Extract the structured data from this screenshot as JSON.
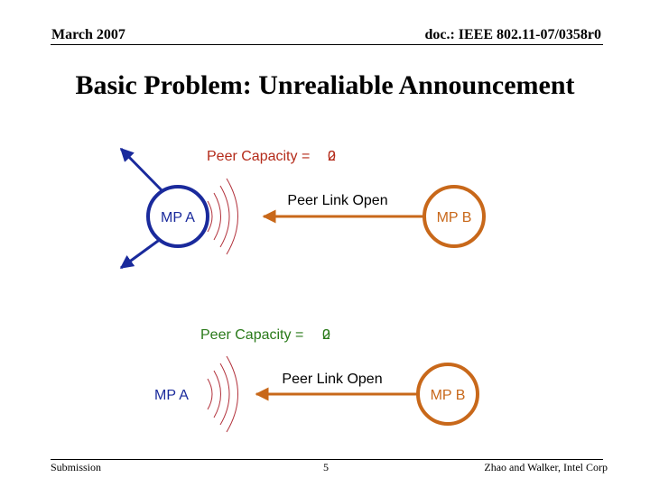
{
  "header": {
    "date": "March 2007",
    "doc_id": "doc.: IEEE 802.11-07/0358r0"
  },
  "title": "Basic Problem: Unrealiable Announcement",
  "scene_top": {
    "peer_capacity_label": "Peer Capacity = ",
    "peer_capacity_values": [
      "0",
      "2"
    ],
    "message": "Peer Link Open",
    "node_a": "MP A",
    "node_b": "MP B"
  },
  "scene_bottom": {
    "peer_capacity_label": "Peer Capacity = ",
    "peer_capacity_values": [
      "0",
      "2"
    ],
    "message": "Peer Link Open",
    "node_a": "MP A",
    "node_b": "MP B"
  },
  "footer": {
    "left": "Submission",
    "page": "5",
    "right": "Zhao and Walker, Intel Corp"
  },
  "colors": {
    "node_a": "#1a2a9c",
    "node_b": "#c8681a",
    "capacity_top": "#b42b1a",
    "capacity_bottom": "#2a7a1a",
    "waves": "#b2323c"
  }
}
